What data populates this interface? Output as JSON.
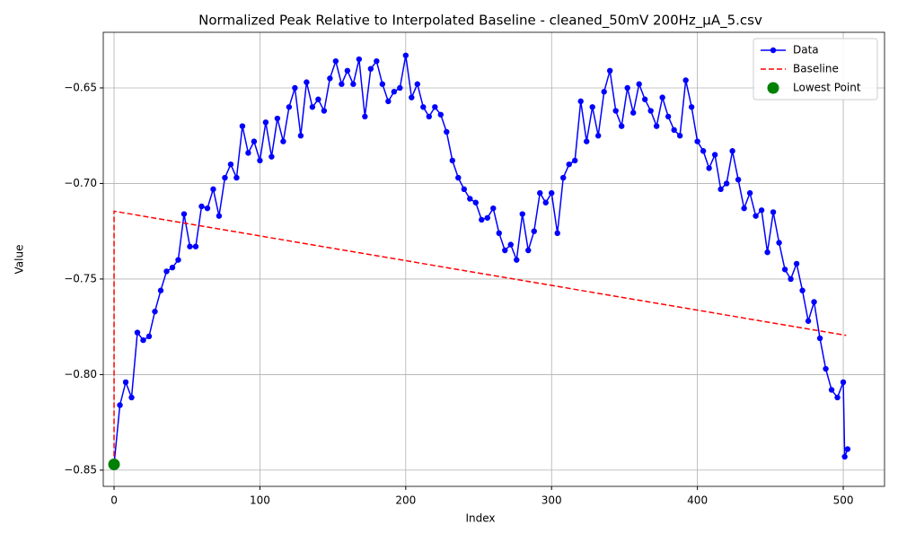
{
  "chart_data": {
    "type": "line",
    "title": "Normalized Peak Relative to Interpolated Baseline - cleaned_50mV 200Hz_μA_5.csv",
    "x_label": "Index",
    "y_label": "Value",
    "xlim": [
      -7.4,
      528.3
    ],
    "ylim": [
      -0.8585,
      -0.6209
    ],
    "xticks": [
      0,
      100,
      200,
      300,
      400,
      500
    ],
    "yticks": [
      {
        "value": -0.85,
        "label": "−0.85"
      },
      {
        "value": -0.8,
        "label": "−0.80"
      },
      {
        "value": -0.75,
        "label": "−0.75"
      },
      {
        "value": -0.7,
        "label": "−0.70"
      },
      {
        "value": -0.65,
        "label": "−0.65"
      }
    ],
    "grid": true,
    "legend": "upper right",
    "series": [
      {
        "name": "Data",
        "color": "#0000ff",
        "style": "line-marker",
        "x": [
          0,
          4,
          8,
          12,
          16,
          20,
          24,
          28,
          32,
          36,
          40,
          44,
          48,
          52,
          56,
          60,
          64,
          68,
          72,
          76,
          80,
          84,
          88,
          92,
          96,
          100,
          104,
          108,
          112,
          116,
          120,
          124,
          128,
          132,
          136,
          140,
          144,
          148,
          152,
          156,
          160,
          164,
          168,
          172,
          176,
          180,
          184,
          188,
          192,
          196,
          200,
          204,
          208,
          212,
          216,
          220,
          224,
          228,
          232,
          236,
          240,
          244,
          248,
          252,
          256,
          260,
          264,
          268,
          272,
          276,
          280,
          284,
          288,
          292,
          296,
          300,
          304,
          308,
          312,
          316,
          320,
          324,
          328,
          332,
          336,
          340,
          344,
          348,
          352,
          356,
          360,
          364,
          368,
          372,
          376,
          380,
          384,
          388,
          392,
          396,
          400,
          404,
          408,
          412,
          416,
          420,
          424,
          428,
          432,
          436,
          440,
          444,
          448,
          452,
          456,
          460,
          464,
          468,
          472,
          476,
          480,
          484,
          488,
          492,
          496,
          500,
          501,
          503
        ],
        "values": [
          -0.847,
          -0.816,
          -0.804,
          -0.812,
          -0.778,
          -0.782,
          -0.78,
          -0.767,
          -0.756,
          -0.746,
          -0.744,
          -0.74,
          -0.716,
          -0.733,
          -0.733,
          -0.712,
          -0.713,
          -0.703,
          -0.717,
          -0.697,
          -0.69,
          -0.697,
          -0.67,
          -0.684,
          -0.678,
          -0.688,
          -0.668,
          -0.686,
          -0.666,
          -0.678,
          -0.66,
          -0.65,
          -0.675,
          -0.647,
          -0.66,
          -0.656,
          -0.662,
          -0.645,
          -0.636,
          -0.648,
          -0.641,
          -0.648,
          -0.635,
          -0.665,
          -0.64,
          -0.636,
          -0.648,
          -0.657,
          -0.652,
          -0.65,
          -0.633,
          -0.655,
          -0.648,
          -0.66,
          -0.665,
          -0.66,
          -0.664,
          -0.673,
          -0.688,
          -0.697,
          -0.703,
          -0.708,
          -0.71,
          -0.719,
          -0.718,
          -0.713,
          -0.726,
          -0.735,
          -0.732,
          -0.74,
          -0.716,
          -0.735,
          -0.725,
          -0.705,
          -0.71,
          -0.705,
          -0.726,
          -0.697,
          -0.69,
          -0.688,
          -0.657,
          -0.678,
          -0.66,
          -0.675,
          -0.652,
          -0.641,
          -0.662,
          -0.67,
          -0.65,
          -0.663,
          -0.648,
          -0.656,
          -0.662,
          -0.67,
          -0.655,
          -0.665,
          -0.672,
          -0.675,
          -0.646,
          -0.66,
          -0.678,
          -0.683,
          -0.692,
          -0.685,
          -0.703,
          -0.7,
          -0.683,
          -0.698,
          -0.713,
          -0.705,
          -0.717,
          -0.714,
          -0.736,
          -0.715,
          -0.731,
          -0.745,
          -0.75,
          -0.742,
          -0.756,
          -0.772,
          -0.762,
          -0.781,
          -0.797,
          -0.808,
          -0.812,
          -0.804,
          -0.843,
          -0.839
        ]
      },
      {
        "name": "Baseline",
        "color": "#ff0000",
        "style": "dashed",
        "x": [
          0,
          0,
          502
        ],
        "values": [
          -0.847,
          -0.7145,
          -0.7795
        ]
      },
      {
        "name": "Lowest Point",
        "color": "#008000",
        "style": "point",
        "x": [
          0
        ],
        "values": [
          -0.847
        ]
      }
    ]
  }
}
